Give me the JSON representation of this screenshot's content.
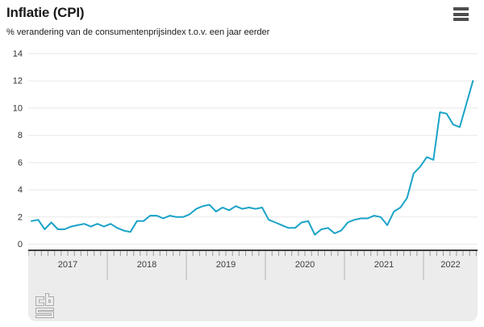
{
  "header": {
    "title": "Inflatie (CPI)",
    "subtitle": "% verandering van de consumentenprijsindex t.o.v. een jaar eerder"
  },
  "menu": {
    "icon": "hamburger-icon"
  },
  "chart_data": {
    "type": "line",
    "title": "Inflatie (CPI)",
    "subtitle": "% verandering van de consumentenprijsindex t.o.v. een jaar eerder",
    "xlabel": "",
    "ylabel": "%",
    "ylim": [
      0,
      14
    ],
    "yticks": [
      0,
      2,
      4,
      6,
      8,
      10,
      12,
      14
    ],
    "grid": true,
    "legend_position": "none",
    "line_color": "#1aa3c8",
    "x_start": "2017-01",
    "x_end": "2022-08",
    "months_per_year": 12,
    "year_labels": [
      "2017",
      "2018",
      "2019",
      "2020",
      "2021",
      "2022"
    ],
    "series": [
      {
        "name": "Inflatie (CPI)",
        "values": [
          1.7,
          1.8,
          1.1,
          1.6,
          1.1,
          1.1,
          1.3,
          1.4,
          1.5,
          1.3,
          1.5,
          1.3,
          1.5,
          1.2,
          1.0,
          0.9,
          1.7,
          1.7,
          2.1,
          2.1,
          1.9,
          2.1,
          2.0,
          2.0,
          2.2,
          2.6,
          2.8,
          2.9,
          2.4,
          2.7,
          2.5,
          2.8,
          2.6,
          2.7,
          2.6,
          2.7,
          1.8,
          1.6,
          1.4,
          1.2,
          1.2,
          1.6,
          1.7,
          0.7,
          1.1,
          1.2,
          0.8,
          1.0,
          1.6,
          1.8,
          1.9,
          1.9,
          2.1,
          2.0,
          1.4,
          2.4,
          2.7,
          3.4,
          5.2,
          5.7,
          6.4,
          6.2,
          9.7,
          9.6,
          8.8,
          8.6,
          10.3,
          12.0
        ]
      }
    ],
    "colors": {
      "gridline": "#e8e8e8",
      "axis_band_bg": "#ececec",
      "axis_band_border": "#3f3f3f",
      "tick": "#9b9b9b",
      "year_separator": "#b3b3b3",
      "axis_text": "#303030"
    }
  },
  "footer": {
    "logo": "cbs-logo"
  }
}
